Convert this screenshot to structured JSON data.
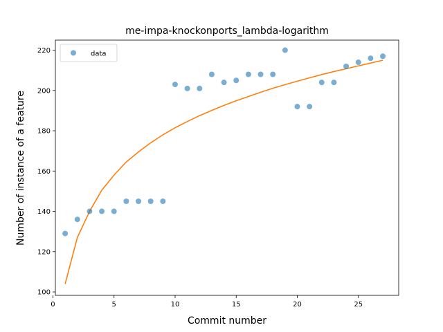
{
  "chart_data": {
    "type": "scatter",
    "title": "me-impa-knockonports_lambda-logarithm",
    "xlabel": "Commit number",
    "ylabel": "Number of instance of a feature",
    "xlim": [
      0.2,
      28.3
    ],
    "ylim": [
      98.3,
      225.0
    ],
    "xticks": [
      0,
      5,
      10,
      15,
      20,
      25
    ],
    "yticks": [
      100,
      120,
      140,
      160,
      180,
      200,
      220
    ],
    "legend": {
      "placement": "top-left",
      "entries": [
        "data"
      ]
    },
    "grid": false,
    "series": [
      {
        "name": "data",
        "kind": "scatter",
        "color": "#1f77b4",
        "x": [
          1,
          2,
          3,
          4,
          5,
          6,
          7,
          8,
          9,
          10,
          11,
          12,
          13,
          14,
          15,
          16,
          17,
          18,
          19,
          20,
          21,
          22,
          23,
          24,
          25,
          26,
          27
        ],
        "y": [
          129,
          136,
          140,
          140,
          140,
          145,
          145,
          145,
          145,
          203,
          201,
          201,
          208,
          204,
          205,
          208,
          208,
          208,
          220,
          192,
          192,
          204,
          204,
          212,
          214,
          216,
          217
        ]
      },
      {
        "kind": "line",
        "color": "#ff7f0e",
        "x": [
          1,
          2,
          3,
          4,
          5,
          6,
          7,
          8,
          9,
          10,
          11,
          12,
          13,
          14,
          15,
          16,
          17,
          18,
          19,
          20,
          21,
          22,
          23,
          24,
          25,
          26,
          27
        ],
        "y": [
          104,
          127,
          140,
          150.5,
          158,
          164.5,
          169.5,
          174,
          178,
          181.5,
          184.6,
          187.5,
          190.1,
          192.6,
          194.9,
          197,
          199.1,
          201.1,
          202.9,
          204.6,
          206.3,
          207.9,
          209.4,
          210.8,
          212.2,
          213.6,
          215
        ]
      }
    ]
  }
}
